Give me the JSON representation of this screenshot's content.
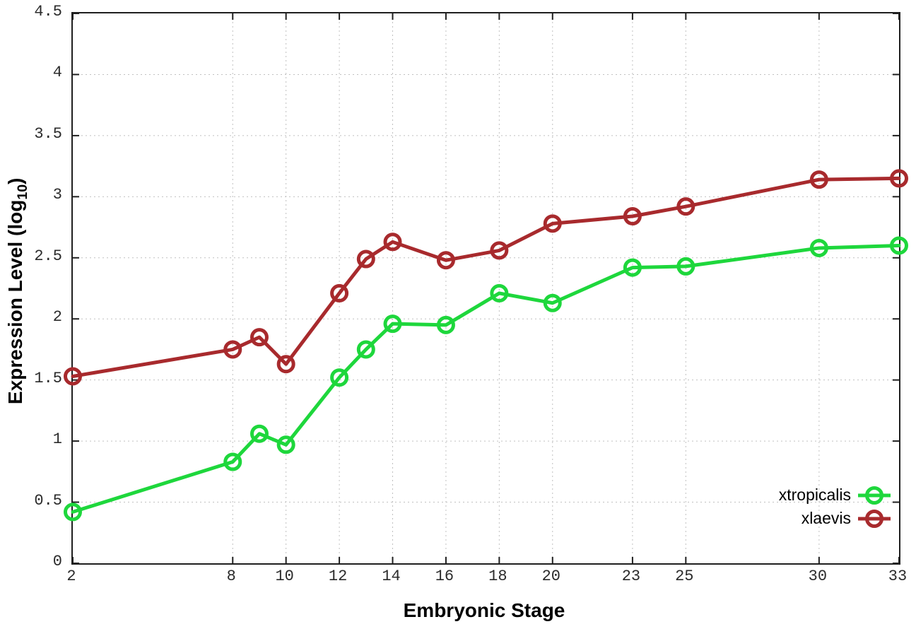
{
  "chart_data": {
    "type": "line",
    "title": "",
    "xlabel": "Embryonic Stage",
    "ylabel": "Expression Level (log10)",
    "ylabel_parts": {
      "main": "Expression Level (log",
      "sub": "10",
      "end": ")"
    },
    "xlim": [
      2,
      33
    ],
    "ylim": [
      0,
      4.5
    ],
    "grid": true,
    "legend_position": "right-center-inside",
    "xticks": [
      "2",
      "8",
      "10",
      "12",
      "14",
      "16",
      "18",
      "20",
      "23",
      "25",
      "30",
      "33"
    ],
    "yticks": [
      "0",
      "0.5",
      "1",
      "1.5",
      "2",
      "2.5",
      "3",
      "3.5",
      "4",
      "4.5"
    ],
    "x": [
      2,
      8,
      9,
      10,
      12,
      13,
      14,
      16,
      18,
      20,
      23,
      25,
      30,
      33
    ],
    "series": [
      {
        "name": "xtropicalis",
        "color": "#1ed73c",
        "values": [
          0.42,
          0.83,
          1.06,
          0.97,
          1.52,
          1.75,
          1.96,
          1.95,
          2.21,
          2.13,
          2.42,
          2.43,
          2.58,
          2.6
        ]
      },
      {
        "name": "xlaevis",
        "color": "#a82a2d",
        "values": [
          1.53,
          1.75,
          1.85,
          1.63,
          2.21,
          2.49,
          2.63,
          2.48,
          2.56,
          2.78,
          2.84,
          2.92,
          3.14,
          3.15
        ]
      }
    ],
    "style": {
      "grid_color": "#c0c0c0",
      "frame_color": "#1f1f1f",
      "background": "#ffffff",
      "line_width": 5,
      "marker": "open-circle",
      "marker_radius": 10.5
    }
  }
}
